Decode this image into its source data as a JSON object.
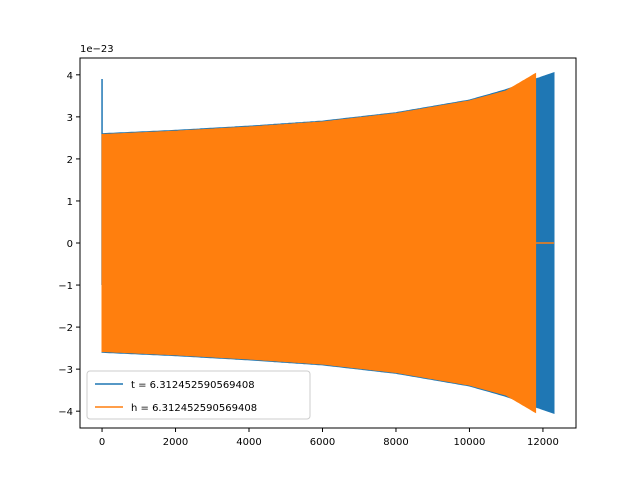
{
  "chart_data": {
    "type": "line",
    "title": "",
    "xlabel": "",
    "ylabel": "",
    "y_offset_label": "1e−23",
    "xlim": [
      -600,
      12900
    ],
    "ylim": [
      -4.4,
      4.4
    ],
    "x_ticks": [
      0,
      2000,
      4000,
      6000,
      8000,
      10000,
      12000
    ],
    "x_tick_labels": [
      "0",
      "2000",
      "4000",
      "6000",
      "8000",
      "10000",
      "12000"
    ],
    "y_ticks": [
      -4,
      -3,
      -2,
      -1,
      0,
      1,
      2,
      3,
      4
    ],
    "y_tick_labels": [
      "−4",
      "−3",
      "−2",
      "−1",
      "0",
      "1",
      "2",
      "3",
      "4"
    ],
    "grid": false,
    "legend_position": "lower-left",
    "series": [
      {
        "name": "t = 6.312452590569408",
        "color": "#1f77b4",
        "envelope_x": [
          0,
          2000,
          4000,
          6000,
          8000,
          10000,
          11000,
          11800,
          12300
        ],
        "envelope_amplitude": [
          2.6,
          2.68,
          2.78,
          2.9,
          3.1,
          3.4,
          3.65,
          3.9,
          4.05
        ],
        "spike": {
          "x": 0,
          "y_max": 3.9,
          "y_min": -1.0
        },
        "end_x": 12300
      },
      {
        "name": "h = 6.312452590569408",
        "color": "#ff7f0e",
        "envelope_x": [
          0,
          2000,
          4000,
          6000,
          8000,
          10000,
          11000,
          11800
        ],
        "envelope_amplitude": [
          2.58,
          2.66,
          2.76,
          2.88,
          3.08,
          3.38,
          3.62,
          4.03
        ],
        "end_x": 11800,
        "flat_tail": {
          "x_start": 11800,
          "x_end": 12300,
          "value": 0
        }
      }
    ]
  }
}
